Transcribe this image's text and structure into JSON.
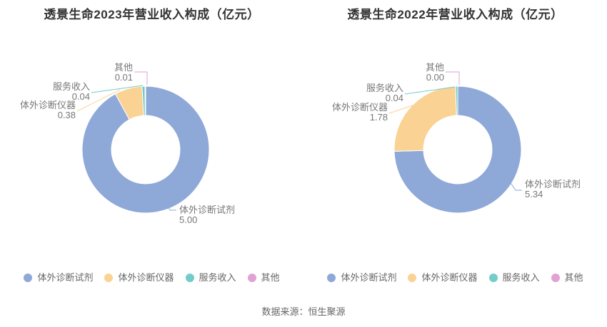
{
  "page": {
    "source_note": "数据来源：恒生聚源"
  },
  "colors": {
    "series": [
      "#8EA8D8",
      "#FAD293",
      "#72CCC8",
      "#E0A2D2"
    ],
    "title_text": "#333333",
    "label_text": "#777777",
    "legend_text": "#666666"
  },
  "legend": {
    "items": [
      "体外诊断试剂",
      "体外诊断仪器",
      "服务收入",
      "其他"
    ]
  },
  "chart_data": [
    {
      "type": "pie",
      "subtype": "donut",
      "title": "透景生命2023年营业收入构成（亿元）",
      "unit": "亿元",
      "categories": [
        "体外诊断试剂",
        "体外诊断仪器",
        "服务收入",
        "其他"
      ],
      "values": [
        5.0,
        0.38,
        0.04,
        0.01
      ],
      "value_labels": [
        "5.00",
        "0.38",
        "0.04",
        "0.01"
      ],
      "legend_position": "bottom"
    },
    {
      "type": "pie",
      "subtype": "donut",
      "title": "透景生命2022年营业收入构成（亿元）",
      "unit": "亿元",
      "categories": [
        "体外诊断试剂",
        "体外诊断仪器",
        "服务收入",
        "其他"
      ],
      "values": [
        5.34,
        1.78,
        0.04,
        0.0
      ],
      "value_labels": [
        "5.34",
        "1.78",
        "0.04",
        "0.00"
      ],
      "legend_position": "bottom"
    }
  ]
}
